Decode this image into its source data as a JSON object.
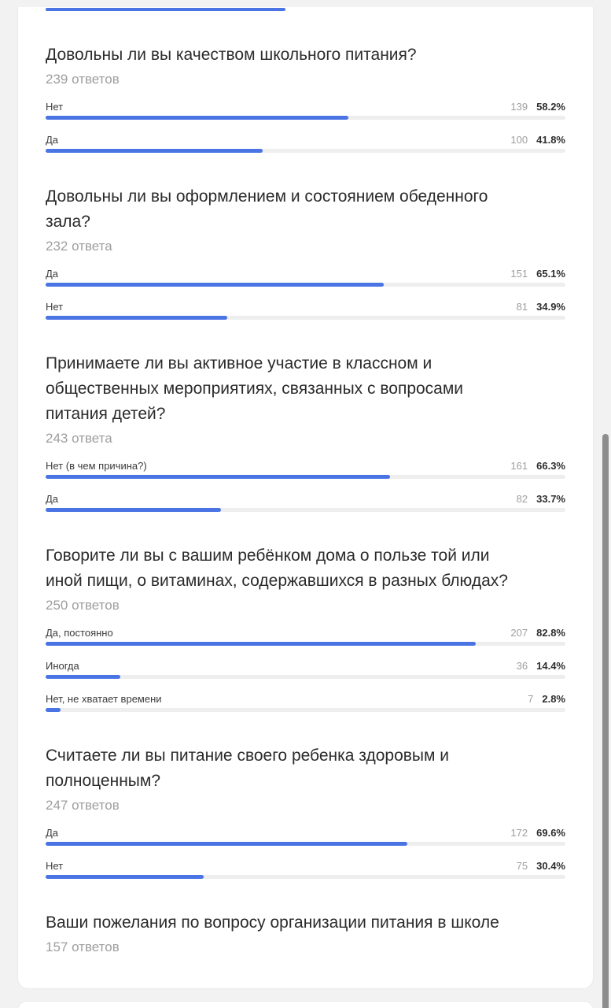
{
  "colors": {
    "bar_blue": "#4a73e4",
    "bar_track": "#eeeeee",
    "page_background": "#f2f2f3",
    "card_background": "#ffffff",
    "muted_text": "#9e9e9e",
    "dark_text": "#2b2b2b"
  },
  "top_fragment": {
    "width_pct": 46.1
  },
  "questions": [
    {
      "title": "Довольны ли вы качеством школьного питания?",
      "title_lines": [
        "Довольны ли вы качеством школьного питания?"
      ],
      "responses": "239 ответов",
      "answers": [
        {
          "label": "Нет",
          "count": "139",
          "percent": "58.2%",
          "width_pct": 58.2
        },
        {
          "label": "Да",
          "count": "100",
          "percent": "41.8%",
          "width_pct": 41.8
        }
      ]
    },
    {
      "title": "Довольны ли вы оформлением и состоянием обеденного зала?",
      "title_lines": [
        "Довольны ли вы оформлением и состоянием обеденного",
        "зала?"
      ],
      "responses": "232 ответа",
      "answers": [
        {
          "label": "Да",
          "count": "151",
          "percent": "65.1%",
          "width_pct": 65.1
        },
        {
          "label": "Нет",
          "count": "81",
          "percent": "34.9%",
          "width_pct": 34.9
        }
      ]
    },
    {
      "title": "Принимаете ли вы активное участие в классном и общественных мероприятиях, связанных с вопросами питания детей?",
      "title_lines": [
        "Принимаете ли вы активное участие в классном и",
        "общественных мероприятиях, связанных с вопросами",
        "питания детей?"
      ],
      "responses": "243 ответа",
      "answers": [
        {
          "label": "Нет (в чем причина?)",
          "count": "161",
          "percent": "66.3%",
          "width_pct": 66.3
        },
        {
          "label": "Да",
          "count": "82",
          "percent": "33.7%",
          "width_pct": 33.7
        }
      ]
    },
    {
      "title": "Говорите ли вы с вашим ребёнком дома о пользе той или иной пищи, о витаминах, содержавшихся в разных блюдах?",
      "title_lines": [
        "Говорите ли вы с вашим ребёнком дома о пользе той или",
        "иной пищи, о витаминах, содержавшихся в разных блюдах?"
      ],
      "responses": "250 ответов",
      "answers": [
        {
          "label": "Да, постоянно",
          "count": "207",
          "percent": "82.8%",
          "width_pct": 82.8
        },
        {
          "label": "Иногда",
          "count": "36",
          "percent": "14.4%",
          "width_pct": 14.4
        },
        {
          "label": "Нет, не хватает времени",
          "count": "7",
          "percent": "2.8%",
          "width_pct": 2.8
        }
      ]
    },
    {
      "title": "Считаете ли вы питание своего ребенка здоровым и полноценным?",
      "title_lines": [
        "Считаете ли вы питание своего ребенка здоровым и",
        "полноценным?"
      ],
      "responses": "247 ответов",
      "answers": [
        {
          "label": "Да",
          "count": "172",
          "percent": "69.6%",
          "width_pct": 69.6
        },
        {
          "label": "Нет",
          "count": "75",
          "percent": "30.4%",
          "width_pct": 30.4
        }
      ]
    },
    {
      "title": "Ваши пожелания по вопросу организации питания в школе",
      "title_lines": [
        "Ваши пожелания по вопросу организации питания в школе"
      ],
      "responses": "157 ответов",
      "answers": []
    }
  ]
}
